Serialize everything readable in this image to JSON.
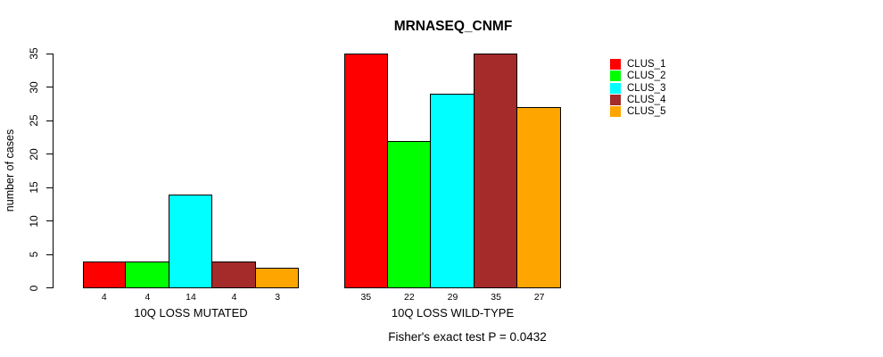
{
  "title": "MRNASEQ_CNMF",
  "annotation": "Fisher's exact test P = 0.0432",
  "chart_data": {
    "type": "bar",
    "title": "MRNASEQ_CNMF",
    "ylabel": "number of cases",
    "xlabel": "",
    "ylim": [
      0,
      35
    ],
    "yticks": [
      0,
      5,
      10,
      15,
      20,
      25,
      30,
      35
    ],
    "grid": false,
    "legend_position": "right",
    "series": [
      {
        "name": "CLUS_1",
        "color": "#FF0000"
      },
      {
        "name": "CLUS_2",
        "color": "#00FF00"
      },
      {
        "name": "CLUS_3",
        "color": "#00FFFF"
      },
      {
        "name": "CLUS_4",
        "color": "#A52A2A"
      },
      {
        "name": "CLUS_5",
        "color": "#FFA500"
      }
    ],
    "groups": [
      {
        "label": "10Q LOSS MUTATED",
        "values": [
          4,
          4,
          14,
          4,
          3
        ],
        "bar_labels": [
          "4",
          "4",
          "14",
          "4",
          "3"
        ]
      },
      {
        "label": "10Q LOSS WILD-TYPE",
        "values": [
          35,
          22,
          29,
          35,
          27
        ],
        "bar_labels": [
          "35",
          "22",
          "29",
          "35",
          "27"
        ]
      }
    ],
    "annotation": "Fisher's exact test P = 0.0432"
  }
}
